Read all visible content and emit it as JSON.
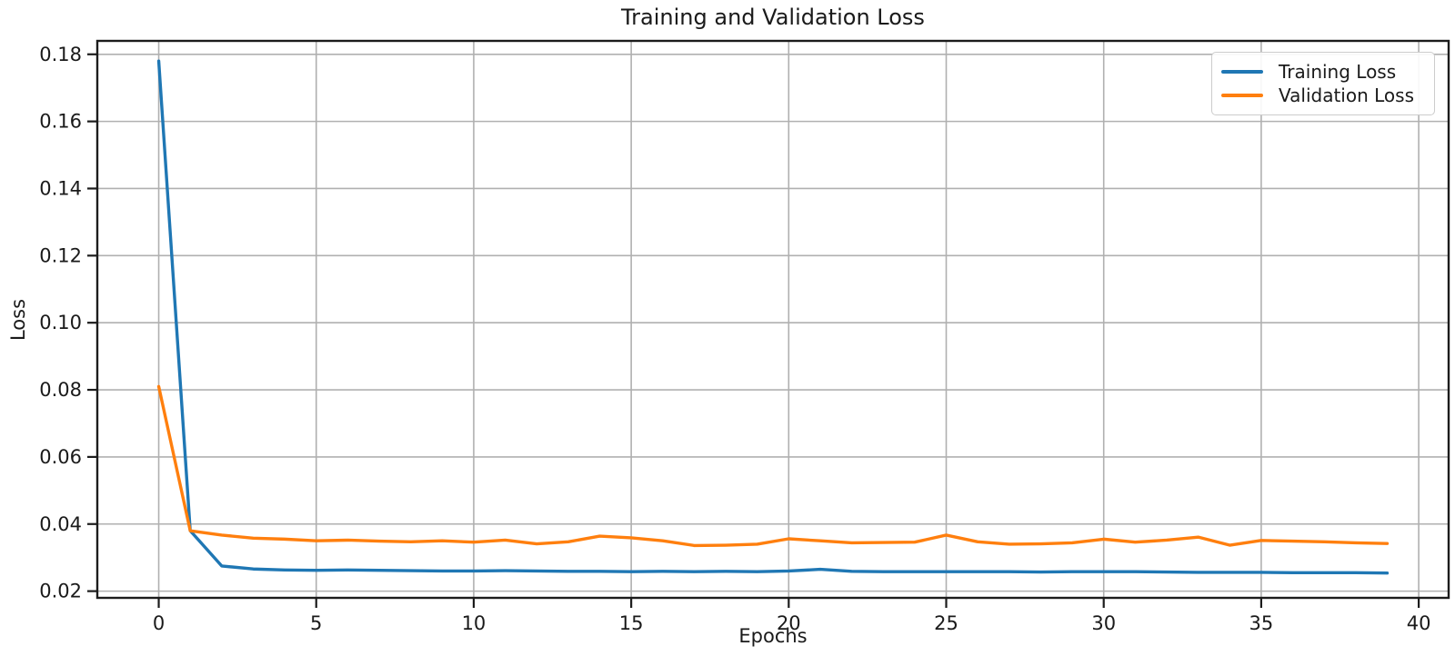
{
  "figure": {
    "title": "Training and Validation Loss",
    "xlabel": "Epochs",
    "ylabel": "Loss"
  },
  "chart_data": {
    "type": "line",
    "title": "Training and Validation Loss",
    "xlabel": "Epochs",
    "ylabel": "Loss",
    "grid": true,
    "legend_position": "upper right",
    "xlim": [
      -1.95,
      40.95
    ],
    "ylim": [
      0.018,
      0.184
    ],
    "xticks": [
      0,
      5,
      10,
      15,
      20,
      25,
      30,
      35,
      40
    ],
    "yticks": [
      0.02,
      0.04,
      0.06,
      0.08,
      0.1,
      0.12,
      0.14,
      0.16,
      0.18
    ],
    "x": [
      0,
      1,
      2,
      3,
      4,
      5,
      6,
      7,
      8,
      9,
      10,
      11,
      12,
      13,
      14,
      15,
      16,
      17,
      18,
      19,
      20,
      21,
      22,
      23,
      24,
      25,
      26,
      27,
      28,
      29,
      30,
      31,
      32,
      33,
      34,
      35,
      36,
      37,
      38,
      39
    ],
    "series": [
      {
        "name": "Training Loss",
        "color": "#1f77b4",
        "values": [
          0.178,
          0.038,
          0.0275,
          0.0266,
          0.0263,
          0.0262,
          0.0263,
          0.0262,
          0.0261,
          0.026,
          0.026,
          0.0261,
          0.026,
          0.0259,
          0.0259,
          0.0258,
          0.0259,
          0.0258,
          0.0259,
          0.0258,
          0.026,
          0.0265,
          0.0259,
          0.0258,
          0.0258,
          0.0258,
          0.0258,
          0.0258,
          0.0257,
          0.0258,
          0.0258,
          0.0258,
          0.0257,
          0.0256,
          0.0256,
          0.0256,
          0.0255,
          0.0255,
          0.0255,
          0.0254
        ]
      },
      {
        "name": "Validation Loss",
        "color": "#ff7f0e",
        "values": [
          0.081,
          0.038,
          0.0367,
          0.0358,
          0.0355,
          0.035,
          0.0352,
          0.0349,
          0.0347,
          0.035,
          0.0346,
          0.0352,
          0.0341,
          0.0347,
          0.0364,
          0.0359,
          0.035,
          0.0336,
          0.0337,
          0.034,
          0.0356,
          0.035,
          0.0344,
          0.0345,
          0.0346,
          0.0367,
          0.0347,
          0.034,
          0.0341,
          0.0344,
          0.0355,
          0.0346,
          0.0352,
          0.0361,
          0.0337,
          0.0351,
          0.0349,
          0.0347,
          0.0344,
          0.0342
        ]
      }
    ],
    "colors": {
      "grid": "#b0b0b0",
      "spine": "#1c1c1c",
      "text": "#1a1a1a",
      "background": "#ffffff"
    }
  }
}
